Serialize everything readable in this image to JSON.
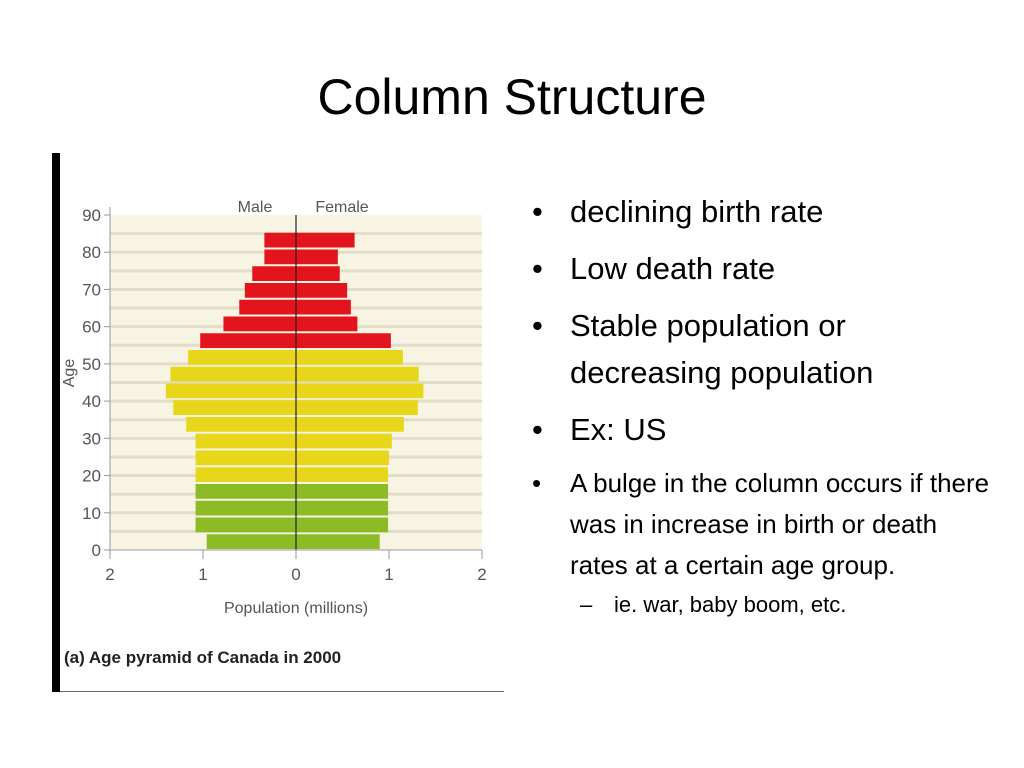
{
  "slide": {
    "title": "Column Structure",
    "bullets": [
      "declining birth rate",
      "Low death rate",
      "Stable population or decreasing population",
      "Ex: US",
      "A bulge in the column occurs if there was in increase in birth or death rates at a certain age group."
    ],
    "subbullet": "ie. war, baby boom, etc."
  },
  "chart_data": {
    "type": "bar",
    "orientation": "horizontal-pyramid",
    "caption": "(a) Age pyramid of Canada in 2000",
    "xlabel": "Population (millions)",
    "ylabel": "Age",
    "x_ticks": [
      "2",
      "1",
      "0",
      "1",
      "2"
    ],
    "y_ticks": [
      "0",
      "10",
      "20",
      "30",
      "40",
      "50",
      "60",
      "70",
      "80",
      "90"
    ],
    "xlim": [
      -2,
      2
    ],
    "ylim": [
      0,
      90
    ],
    "series": [
      {
        "name": "Male",
        "values": [
          0.96,
          1.08,
          1.08,
          1.08,
          1.08,
          1.08,
          1.08,
          1.18,
          1.32,
          1.4,
          1.35,
          1.16,
          1.03,
          0.78,
          0.61,
          0.55,
          0.47,
          0.34,
          0.34
        ]
      },
      {
        "name": "Female",
        "values": [
          0.9,
          0.99,
          0.99,
          0.99,
          0.99,
          1.0,
          1.03,
          1.16,
          1.31,
          1.37,
          1.32,
          1.15,
          1.02,
          0.66,
          0.59,
          0.55,
          0.47,
          0.45,
          0.63
        ]
      }
    ],
    "band_colors": [
      {
        "from_age": 0,
        "to_age": 15,
        "color": "#8dbb25"
      },
      {
        "from_age": 15,
        "to_age": 50,
        "color": "#e8d61a"
      },
      {
        "from_age": 50,
        "to_age": 90,
        "color": "#e3141d"
      }
    ],
    "background": "#f7f4e4",
    "stripe_color": "#e2ddc6",
    "grid": false
  }
}
